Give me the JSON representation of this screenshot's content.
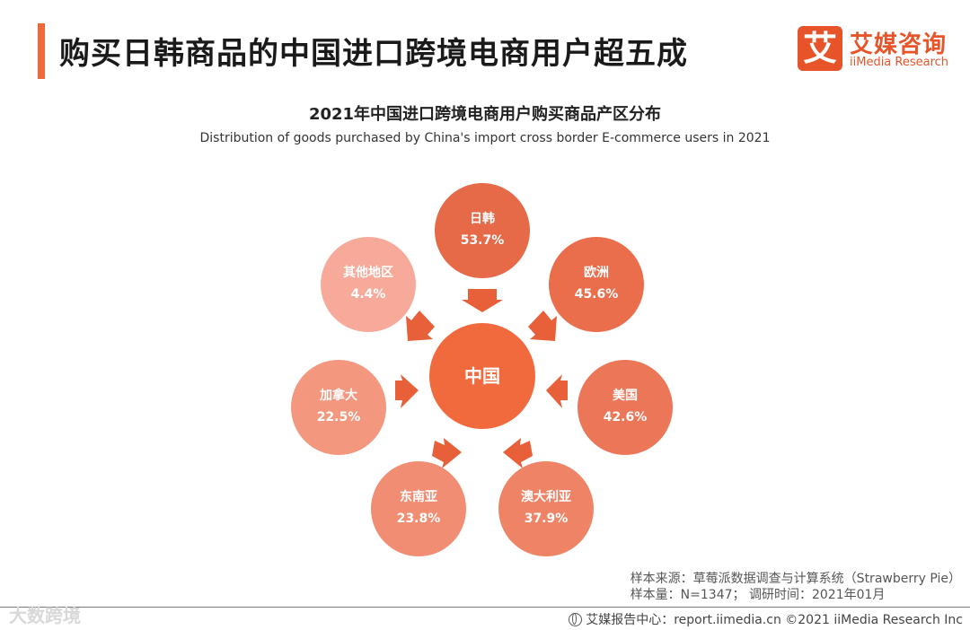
{
  "header": {
    "title": "购买日韩商品的中国进口跨境电商用户超五成"
  },
  "logo": {
    "mark": "艾",
    "name_cn": "艾媒咨询",
    "name_en": "iiMedia Research"
  },
  "chart": {
    "title_cn": "2021年中国进口跨境电商用户购买商品产区分布",
    "title_en": "Distribution of goods purchased by China's import cross border E-commerce users in 2021"
  },
  "colors": {
    "accent": "#ee6a3d",
    "center": "#f06a3e"
  },
  "chart_data": {
    "type": "diagram",
    "center": "中国",
    "nodes": [
      {
        "name": "日韩",
        "value": "53.7%",
        "color": "#e66a48"
      },
      {
        "name": "欧洲",
        "value": "45.6%",
        "color": "#ea6d4c"
      },
      {
        "name": "美国",
        "value": "42.6%",
        "color": "#ec7658"
      },
      {
        "name": "澳大利亚",
        "value": "37.9%",
        "color": "#ef8366"
      },
      {
        "name": "东南亚",
        "value": "23.8%",
        "color": "#f08d72"
      },
      {
        "name": "加拿大",
        "value": "22.5%",
        "color": "#f3977e"
      },
      {
        "name": "其他地区",
        "value": "4.4%",
        "color": "#f7a99a"
      }
    ]
  },
  "source": {
    "line1": "样本来源：草莓派数据调查与计算系统（Strawberry Pie）",
    "line2": "样本量：N=1347；  调研时间：2021年01月"
  },
  "footer": {
    "text": "艾媒报告中心：report.iimedia.cn   ©2021  iiMedia Research  Inc"
  },
  "watermark": "大数跨境"
}
